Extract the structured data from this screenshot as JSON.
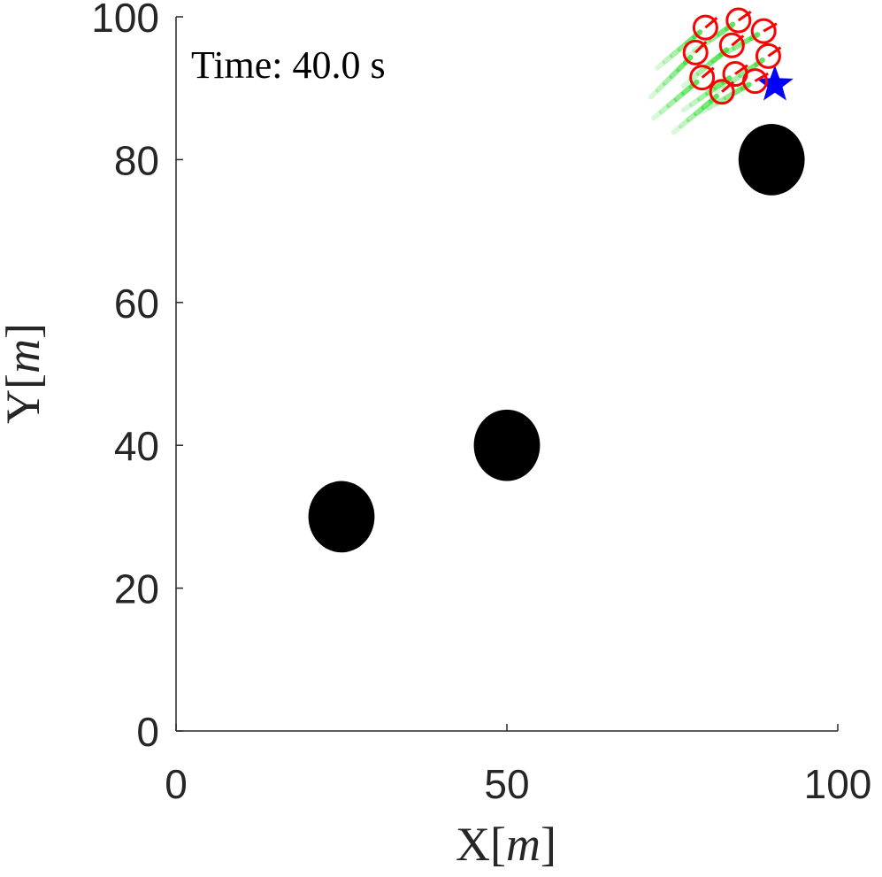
{
  "chart_data": {
    "type": "scatter",
    "title": "",
    "annotation": "Time: 40.0 s",
    "xlabel": {
      "prefix": "X[",
      "unit": "m",
      "suffix": "]"
    },
    "ylabel": {
      "prefix": "Y[",
      "unit": "m",
      "suffix": "]"
    },
    "xlim": [
      0,
      100
    ],
    "ylim": [
      0,
      100
    ],
    "xticks": [
      0,
      50,
      100
    ],
    "yticks": [
      0,
      20,
      40,
      60,
      80,
      100
    ],
    "xtick_labels": [
      "0",
      "50",
      "100"
    ],
    "ytick_labels": [
      "0",
      "20",
      "40",
      "60",
      "80",
      "100"
    ],
    "grid": false,
    "legend": "none",
    "series": [
      {
        "marker": "obstacle-disc",
        "color": "#000000",
        "points": [
          {
            "x": 25,
            "y": 30,
            "r": 5
          },
          {
            "x": 50,
            "y": 40,
            "r": 5
          },
          {
            "x": 90,
            "y": 80,
            "r": 5
          }
        ]
      },
      {
        "marker": "goal-star",
        "color": "#0000ff",
        "points": [
          {
            "x": 90.5,
            "y": 90.5
          }
        ]
      },
      {
        "marker": "agent-circle",
        "color": "#ff0000",
        "trail_color": "#33dd33",
        "points": [
          {
            "x": 80,
            "y": 98.5,
            "heading": 40
          },
          {
            "x": 85,
            "y": 99.5,
            "heading": 35
          },
          {
            "x": 88.8,
            "y": 98,
            "heading": 30
          },
          {
            "x": 78.5,
            "y": 95,
            "heading": 45
          },
          {
            "x": 84,
            "y": 96,
            "heading": 40
          },
          {
            "x": 89.5,
            "y": 94.5,
            "heading": 35
          },
          {
            "x": 79.5,
            "y": 91.5,
            "heading": 40
          },
          {
            "x": 84.5,
            "y": 92,
            "heading": 35
          },
          {
            "x": 87.5,
            "y": 91,
            "heading": 30
          },
          {
            "x": 82.5,
            "y": 89.5,
            "heading": 40
          }
        ]
      }
    ]
  }
}
